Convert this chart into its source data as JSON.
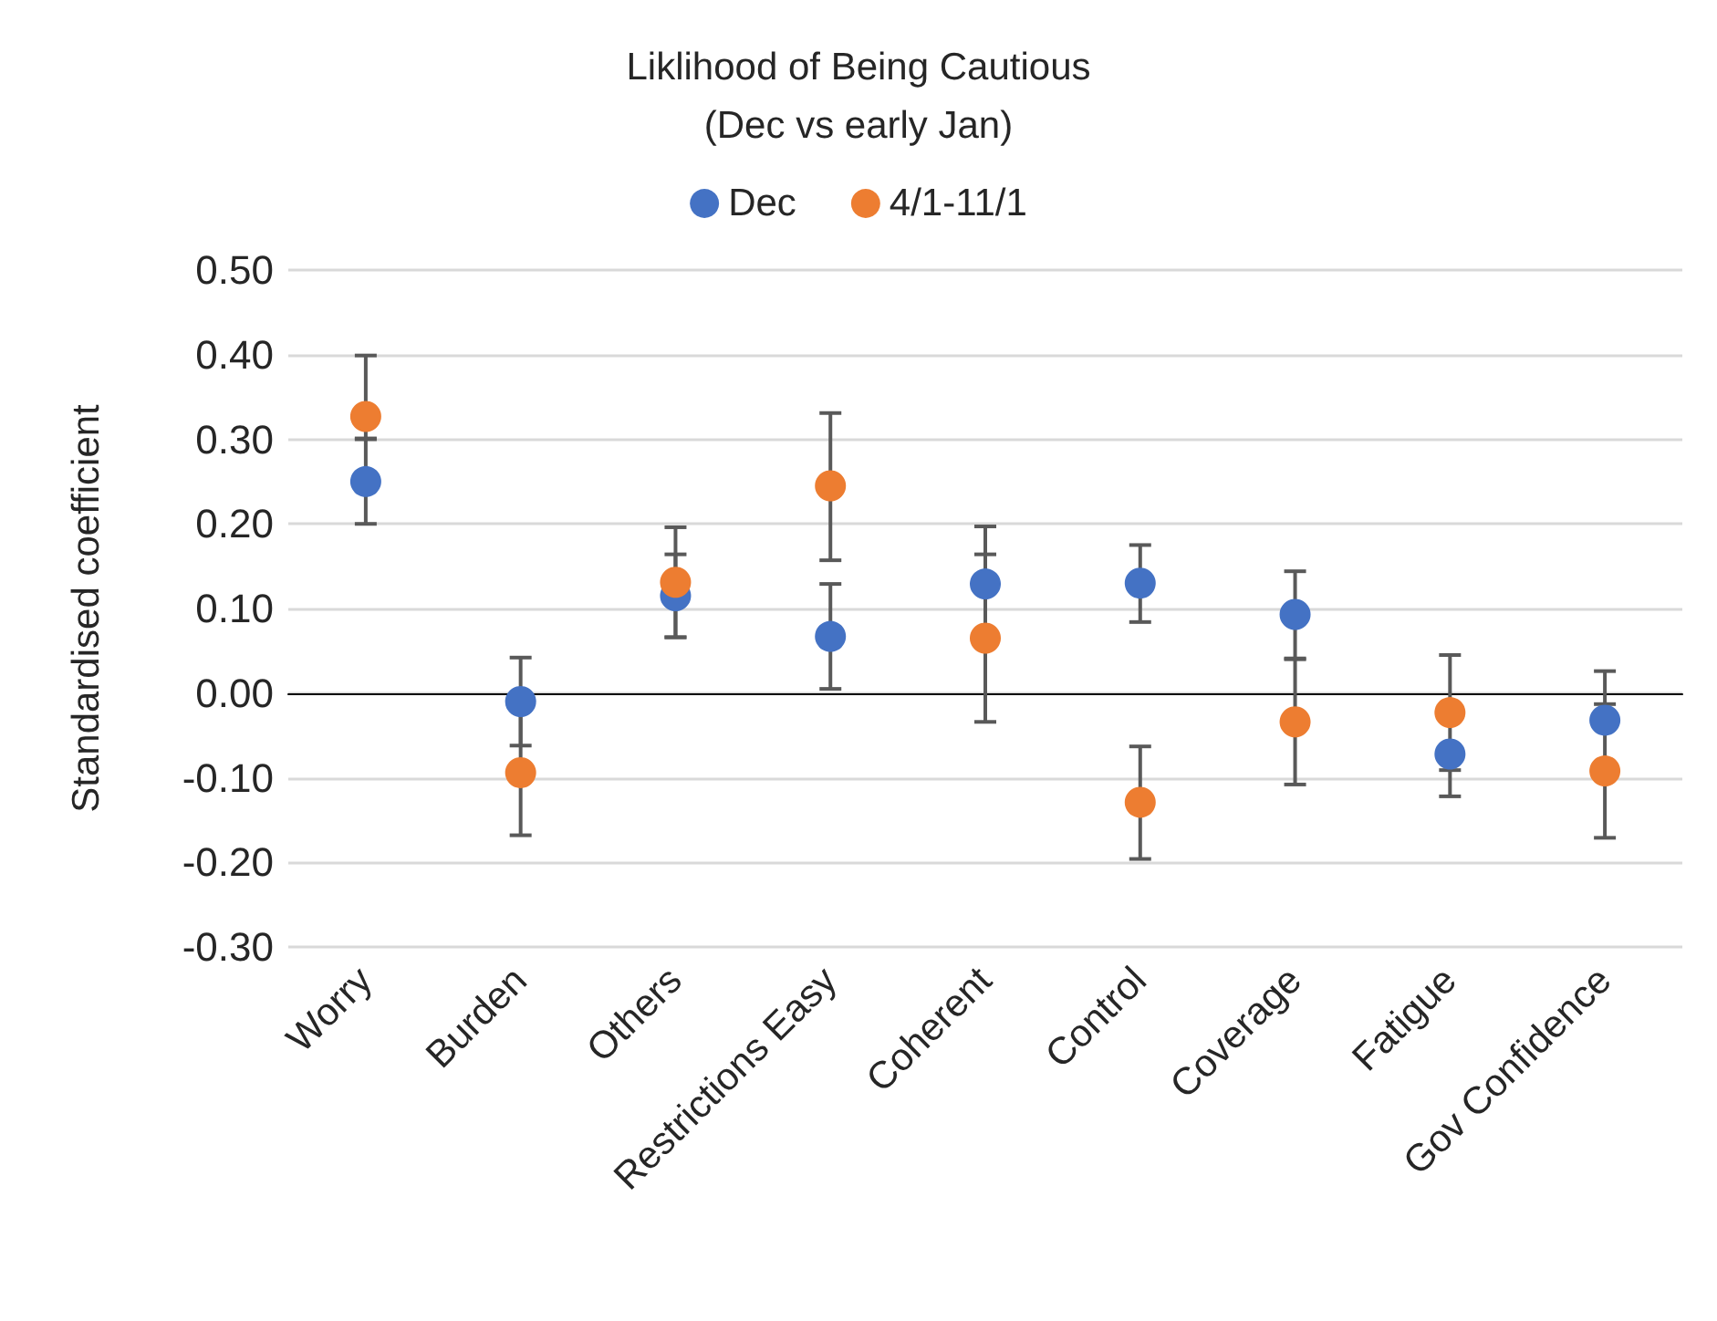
{
  "chart_data": {
    "type": "scatter",
    "title": "Liklihood of Being Cautious\n(Dec vs early Jan)",
    "ylabel": "Standardised coefficient",
    "categories": [
      "Worry",
      "Burden",
      "Others",
      "Restrictions Easy",
      "Coherent",
      "Control",
      "Coverage",
      "Fatigue",
      "Gov Confidence"
    ],
    "series": [
      {
        "name": "Dec",
        "color": "#4472c4",
        "values": [
          0.25,
          -0.01,
          0.115,
          0.067,
          0.129,
          0.13,
          0.093,
          -0.072,
          -0.032
        ],
        "errors": [
          [
            0.2,
            0.3
          ],
          [
            -0.062,
            0.042
          ],
          [
            0.066,
            0.164
          ],
          [
            0.005,
            0.129
          ],
          [
            0.129,
            0.197
          ],
          [
            0.084,
            0.175
          ],
          [
            0.041,
            0.144
          ],
          [
            -0.122,
            -0.072
          ],
          [
            -0.032,
            0.026
          ]
        ]
      },
      {
        "name": "4/1-11/1",
        "color": "#ed7d31",
        "values": [
          0.327,
          -0.094,
          0.131,
          0.245,
          0.065,
          -0.129,
          -0.034,
          -0.023,
          -0.092
        ],
        "errors": [
          [
            0.301,
            0.399
          ],
          [
            -0.168,
            -0.02
          ],
          [
            0.066,
            0.196
          ],
          [
            0.157,
            0.331
          ],
          [
            -0.034,
            0.164
          ],
          [
            -0.196,
            -0.063
          ],
          [
            -0.108,
            0.04
          ],
          [
            -0.091,
            0.045
          ],
          [
            -0.171,
            -0.013
          ]
        ]
      }
    ],
    "ylim": [
      -0.3,
      0.5
    ],
    "yticks": [
      {
        "value": -0.3,
        "label": "-0.30"
      },
      {
        "value": -0.2,
        "label": "-0.20"
      },
      {
        "value": -0.1,
        "label": "-0.10"
      },
      {
        "value": 0,
        "label": "0.00"
      },
      {
        "value": 0.1,
        "label": "0.10"
      },
      {
        "value": 0.2,
        "label": "0.20"
      },
      {
        "value": 0.3,
        "label": "0.30"
      },
      {
        "value": 0.4,
        "label": "0.40"
      },
      {
        "value": 0.5,
        "label": "0.50"
      }
    ],
    "grid": "y",
    "legend": "top",
    "marker": "circle"
  }
}
